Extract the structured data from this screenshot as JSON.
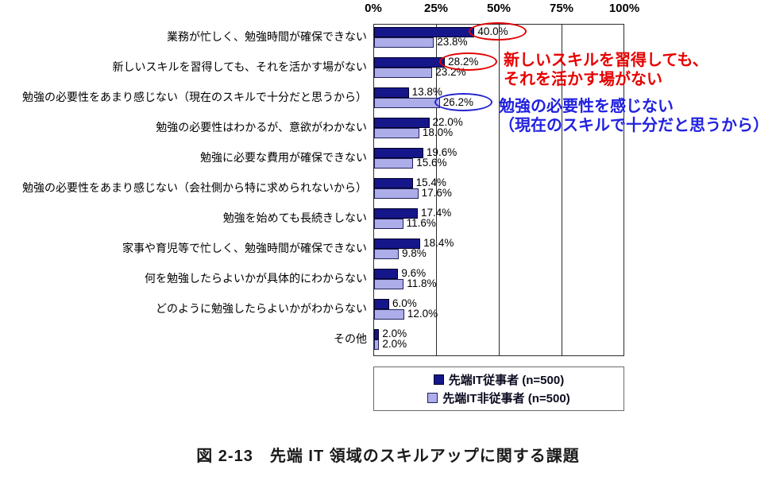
{
  "chart_data": {
    "type": "bar",
    "orientation": "horizontal",
    "title": "",
    "xlabel": "",
    "ylabel": "",
    "xlim": [
      0,
      100
    ],
    "x_ticks": [
      "0%",
      "25%",
      "50%",
      "75%",
      "100%"
    ],
    "grid": "vertical",
    "legend_position": "bottom",
    "categories": [
      "業務が忙しく、勉強時間が確保できない",
      "新しいスキルを習得しても、それを活かす場がない",
      "勉強の必要性をあまり感じない（現在のスキルで十分だと思うから）",
      "勉強の必要性はわかるが、意欲がわかない",
      "勉強に必要な費用が確保できない",
      "勉強の必要性をあまり感じない（会社側から特に求められないから）",
      "勉強を始めても長続きしない",
      "家事や育児等で忙しく、勉強時間が確保できない",
      "何を勉強したらよいかが具体的にわからない",
      "どのように勉強したらよいかがわからない",
      "その他"
    ],
    "series": [
      {
        "name": "先端IT従事者 (n=500)",
        "color": "#16168B",
        "values": [
          40.0,
          28.2,
          13.8,
          22.0,
          19.6,
          15.4,
          17.4,
          18.4,
          9.6,
          6.0,
          2.0
        ]
      },
      {
        "name": "先端IT非従事者 (n=500)",
        "color": "#ADADEA",
        "values": [
          23.8,
          23.2,
          26.2,
          18.0,
          15.6,
          17.6,
          11.6,
          9.8,
          11.8,
          12.0,
          2.0
        ]
      }
    ],
    "value_label_format": "{value}%"
  },
  "annotations": {
    "ellipses": [
      {
        "row": 0,
        "series": 0,
        "value": 40.0,
        "color": "#E00000"
      },
      {
        "row": 1,
        "series": 0,
        "value": 28.2,
        "color": "#E00000"
      },
      {
        "row": 2,
        "series": 1,
        "value": 26.2,
        "color": "#2121CE"
      }
    ],
    "callouts": [
      {
        "color": "#E60000",
        "lines": [
          "新しいスキルを習得しても、",
          "それを活かす場がない"
        ]
      },
      {
        "color": "#2121E0",
        "lines": [
          "勉強の必要性を感じない",
          "（現在のスキルで十分だと思うから）"
        ]
      }
    ]
  },
  "legend": {
    "items": [
      {
        "label": "先端IT従事者 (n=500)",
        "color": "#16168B"
      },
      {
        "label": "先端IT非従事者 (n=500)",
        "color": "#ADADEA"
      }
    ]
  },
  "caption": "図 2-13　先端 IT 領域のスキルアップに関する課題"
}
